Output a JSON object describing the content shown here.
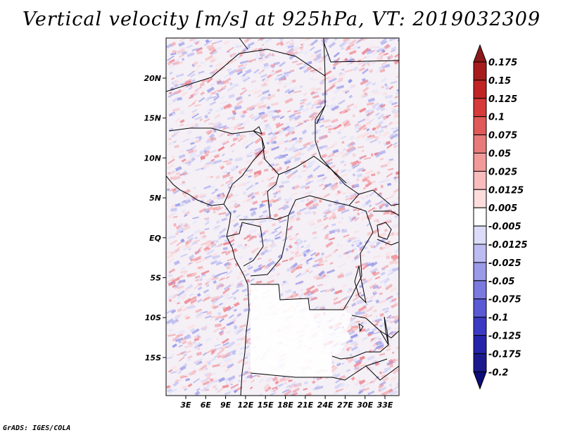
{
  "title": "Vertical velocity [m/s] at 925hPa, VT: 2019032309",
  "credit": "GrADS: IGES/COLA",
  "map": {
    "lon_labels": [
      "3E",
      "6E",
      "9E",
      "12E",
      "15E",
      "18E",
      "21E",
      "24E",
      "27E",
      "30E",
      "33E"
    ],
    "lat_labels": [
      "20N",
      "15N",
      "10N",
      "5N",
      "EQ",
      "5S",
      "10S",
      "15S"
    ]
  },
  "colorbar": {
    "labels": [
      "0.175",
      "0.15",
      "0.125",
      "0.1",
      "0.075",
      "0.05",
      "0.025",
      "0.0125",
      "0.005",
      "-0.005",
      "-0.0125",
      "-0.025",
      "-0.05",
      "-0.075",
      "-0.1",
      "-0.125",
      "-0.175",
      "-0.2"
    ],
    "colors": [
      "#8b1a1a",
      "#a61c1c",
      "#c02424",
      "#d63a3a",
      "#e05a5a",
      "#e87a7a",
      "#f29a9a",
      "#f8bcbc",
      "#fcdcdc",
      "#ffffff",
      "#dcdcf8",
      "#bcbcf2",
      "#9a9ae8",
      "#7a7ae0",
      "#5a5ad6",
      "#3a3ac4",
      "#2424aa",
      "#1a1a8e",
      "#0d0d78"
    ]
  }
}
